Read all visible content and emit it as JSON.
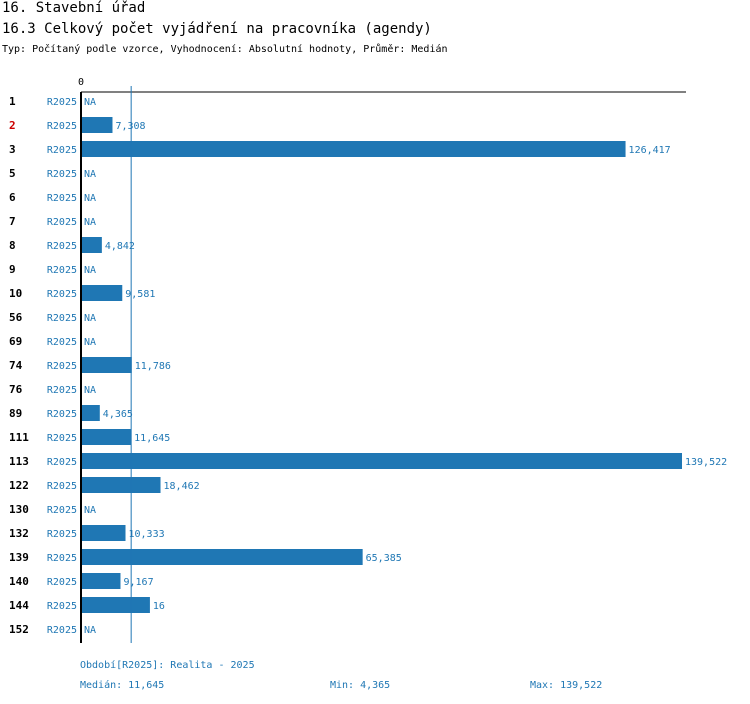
{
  "header": {
    "section": "16. Stavební úřad",
    "title": "16.3 Celkový počet vyjádření na pracovníka (agendy)",
    "subtitle": "Typ: Počítaný podle vzorce, Vyhodnocení: Absolutní hodnoty, Průměr: Medián"
  },
  "colors": {
    "bar": "#1f77b4",
    "highlight": "#cc0000",
    "text": "#000000"
  },
  "chart_data": {
    "type": "bar",
    "orientation": "horizontal",
    "period_label": "R2025",
    "axis_zero_label": "0",
    "x_range": [
      0,
      139.522
    ],
    "median_line": 11.645,
    "highlight_category": "2",
    "categories": [
      "1",
      "2",
      "3",
      "5",
      "6",
      "7",
      "8",
      "9",
      "10",
      "56",
      "69",
      "74",
      "76",
      "89",
      "111",
      "113",
      "122",
      "130",
      "132",
      "139",
      "140",
      "144",
      "152"
    ],
    "values": [
      null,
      7.308,
      126.417,
      null,
      null,
      null,
      4.842,
      null,
      9.581,
      null,
      null,
      11.786,
      null,
      4.365,
      11.645,
      139.522,
      18.462,
      null,
      10.333,
      65.385,
      9.167,
      16,
      null
    ],
    "value_labels": [
      "NA",
      "7,308",
      "126,417",
      "NA",
      "NA",
      "NA",
      "4,842",
      "NA",
      "9,581",
      "NA",
      "NA",
      "11,786",
      "NA",
      "4,365",
      "11,645",
      "139,522",
      "18,462",
      "NA",
      "10,333",
      "65,385",
      "9,167",
      "16",
      "NA"
    ]
  },
  "footer": {
    "period": "Období[R2025]: Realita - 2025",
    "median": "Medián: 11,645",
    "min": "Min: 4,365",
    "max": "Max: 139,522"
  }
}
